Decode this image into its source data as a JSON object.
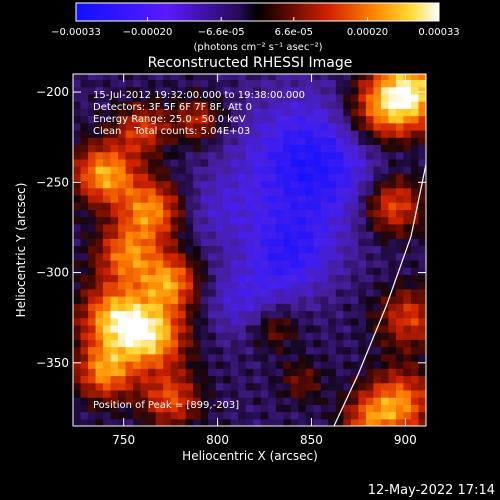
{
  "chart_data": {
    "type": "heatmap",
    "title": "Reconstructed RHESSI Image",
    "xlabel": "Heliocentric X (arcsec)",
    "ylabel": "Heliocentric Y (arcsec)",
    "xlim": [
      723,
      911
    ],
    "ylim": [
      -385,
      -190
    ],
    "xticks": [
      750,
      800,
      850,
      900
    ],
    "yticks": [
      -200,
      -250,
      -300,
      -350
    ],
    "colorbar": {
      "min": -0.00033,
      "max": 0.00033,
      "ticks": [
        {
          "value": -0.00033,
          "label": "-0.00033"
        },
        {
          "value": -0.0002,
          "label": "-0.00020"
        },
        {
          "value": -6.6e-05,
          "label": "-6.6e-05"
        },
        {
          "value": 6.6e-05,
          "label": "6.6e-05"
        },
        {
          "value": 0.0002,
          "label": "0.00020"
        },
        {
          "value": 0.00033,
          "label": "0.00033"
        }
      ],
      "units_label": "(photons cm⁻² s⁻¹ asec⁻²)"
    },
    "annotations": [
      "15-Jul-2012 19:32:00.000 to 19:38:00.000",
      "Detectors: 3F 5F 6F 7F 8F, Att 0",
      "Energy Range: 25.0 - 50.0 keV",
      "Clean    Total counts: 5.04E+03"
    ],
    "peak_label": "Position of Peak = [899,-203]",
    "peak": {
      "x": 899,
      "y": -203
    },
    "limb_curve": [
      [
        862,
        -385
      ],
      [
        875,
        -356
      ],
      [
        890,
        -318
      ],
      [
        903,
        -280
      ],
      [
        911,
        -240
      ]
    ],
    "blobs": [
      {
        "x": 902,
        "y": -200,
        "r": 14,
        "amp": 1.0
      },
      {
        "x": 885,
        "y": -212,
        "r": 14,
        "amp": 0.6
      },
      {
        "x": 893,
        "y": -262,
        "r": 12,
        "amp": 0.7
      },
      {
        "x": 902,
        "y": -325,
        "r": 12,
        "amp": 0.55
      },
      {
        "x": 897,
        "y": -372,
        "r": 13,
        "amp": 0.75
      },
      {
        "x": 880,
        "y": -382,
        "r": 10,
        "amp": 0.5
      },
      {
        "x": 740,
        "y": -245,
        "r": 12,
        "amp": 0.85
      },
      {
        "x": 765,
        "y": -265,
        "r": 12,
        "amp": 0.75
      },
      {
        "x": 752,
        "y": -290,
        "r": 12,
        "amp": 0.7
      },
      {
        "x": 775,
        "y": -305,
        "r": 11,
        "amp": 0.75
      },
      {
        "x": 745,
        "y": -325,
        "r": 13,
        "amp": 0.85
      },
      {
        "x": 765,
        "y": -335,
        "r": 13,
        "amp": 0.9
      },
      {
        "x": 740,
        "y": -355,
        "r": 11,
        "amp": 0.75
      },
      {
        "x": 775,
        "y": -370,
        "r": 11,
        "amp": 0.6
      },
      {
        "x": 760,
        "y": -220,
        "r": 10,
        "amp": 0.55
      },
      {
        "x": 790,
        "y": -215,
        "r": 9,
        "amp": 0.5
      },
      {
        "x": 830,
        "y": -330,
        "r": 9,
        "amp": 0.35
      },
      {
        "x": 845,
        "y": -360,
        "r": 8,
        "amp": 0.3
      },
      {
        "x": 850,
        "y": -240,
        "r": 26,
        "amp": -0.75
      },
      {
        "x": 838,
        "y": -290,
        "r": 16,
        "amp": -0.55
      },
      {
        "x": 813,
        "y": -315,
        "r": 14,
        "amp": -0.35
      },
      {
        "x": 800,
        "y": -265,
        "r": 14,
        "amp": -0.25
      }
    ]
  },
  "footer": {
    "timestamp": "12-May-2022 17:14"
  }
}
